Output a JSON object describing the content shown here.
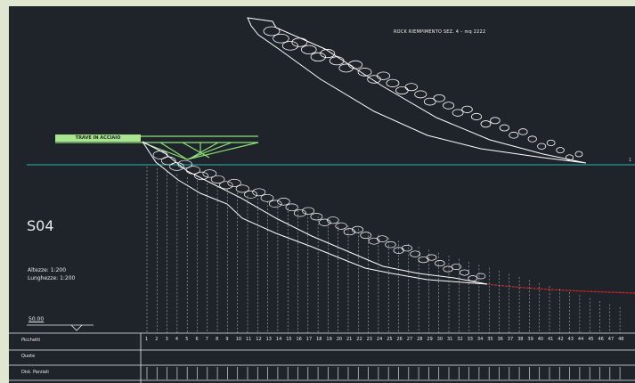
{
  "drawing": {
    "title": "ROCK RIEMPIMENTO SEZ. 4 – mq 2222",
    "section": "S04",
    "scale_h": "Altezze: 1:200",
    "scale_l": "Lunghezze: 1:200",
    "elevation": "50.00",
    "beam_label": "TRAVE IN ACCIAIO",
    "edge_tick": "1",
    "rows": {
      "picchetti": "Picchetti",
      "quote": "Quote",
      "distanze": "Dist. Parziali"
    },
    "stations": [
      "1",
      "2",
      "3",
      "4",
      "5",
      "6",
      "7",
      "8",
      "9",
      "10",
      "11",
      "12",
      "13",
      "14",
      "15",
      "16",
      "17",
      "18",
      "19",
      "20",
      "21",
      "22",
      "23",
      "24",
      "25",
      "26",
      "27",
      "28",
      "29",
      "30",
      "31",
      "32",
      "33",
      "34",
      "35",
      "36",
      "37",
      "38",
      "39",
      "40",
      "41",
      "42",
      "43",
      "44",
      "45",
      "46",
      "47",
      "48"
    ]
  },
  "colors": {
    "background": "#1e2429",
    "frame": "#dfe6d2",
    "terrain": "#ffffff",
    "rock_fill": "#ffffff",
    "beam": "#8fe07a",
    "datum": "#2fb3b3",
    "red_profile": "#e02020",
    "grid": "#c9d0d6"
  }
}
